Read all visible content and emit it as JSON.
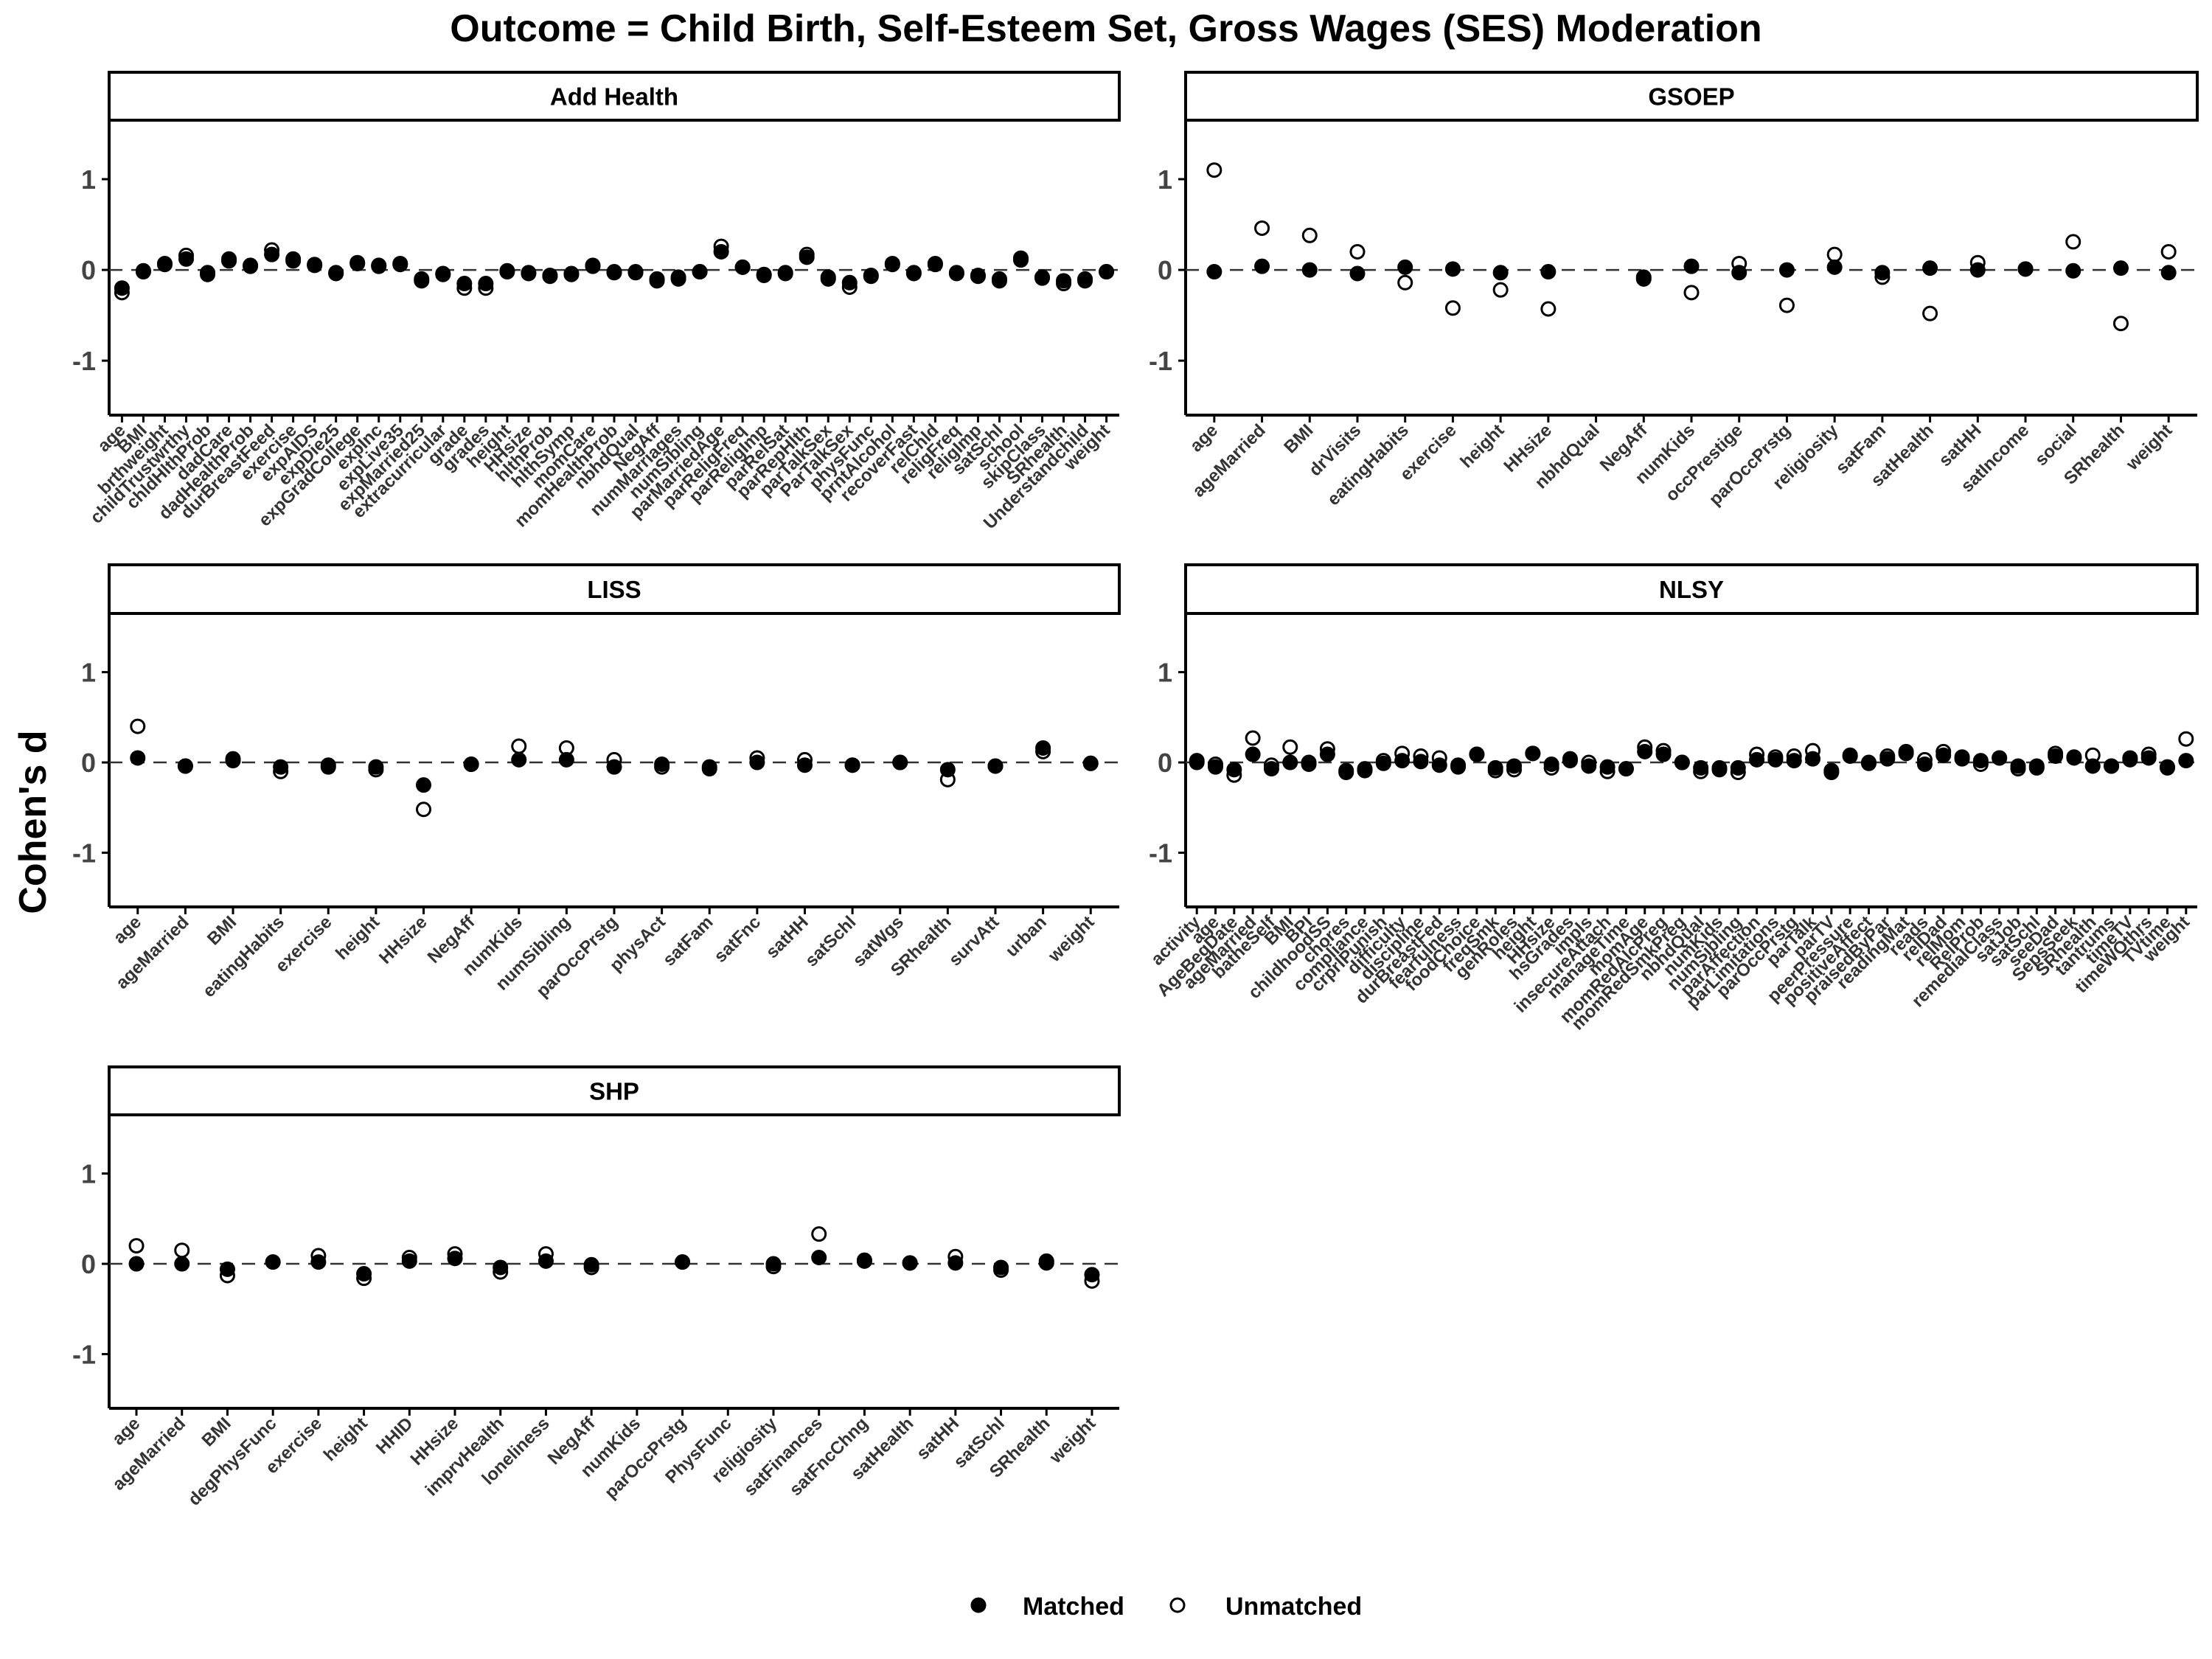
{
  "title": "Outcome = Child Birth, Self-Esteem Set, Gross Wages (SES) Moderation",
  "ylabel": "Cohen's d",
  "legend": {
    "position": "bottom",
    "items": [
      {
        "label": "Matched",
        "marker": "filled-circle"
      },
      {
        "label": "Unmatched",
        "marker": "open-circle"
      }
    ]
  },
  "colors": {
    "matched": "#000000",
    "unmatched": "#ffffff",
    "reference_line": "#333333"
  },
  "chart_data": [
    {
      "type": "scatter",
      "panel": "Add Health",
      "ylim": [
        -1.6,
        1.65
      ],
      "yticks": [
        -1,
        0,
        1
      ],
      "reference_line": 0,
      "categories": [
        "age",
        "BMI",
        "brthweight",
        "childTrustwrthy",
        "chldHlthProb",
        "dadCare",
        "dadHealthProb",
        "durBreastFeed",
        "exercise",
        "expAIDS",
        "expDie25",
        "expGradCollege",
        "expInc",
        "expLive35",
        "expMarried25",
        "extracurricular",
        "grade",
        "grades",
        "height",
        "HHsize",
        "hlthProb",
        "hlthSymp",
        "momCare",
        "momHealthProb",
        "nbhdQual",
        "NegAff",
        "numMarriages",
        "numSibling",
        "parMarriedAge",
        "parReligFreq",
        "parReligImp",
        "parRelSat",
        "parRepHlth",
        "parTalkSex",
        "ParTalkSex",
        "physFunc",
        "prntAlcohol",
        "recoverFast",
        "relChld",
        "religFreq",
        "religImp",
        "satSchl",
        "school",
        "skipClass",
        "SRhealth",
        "Understandchild",
        "weight"
      ],
      "series": [
        {
          "name": "Matched",
          "values": [
            -0.2,
            -0.02,
            0.06,
            0.12,
            -0.05,
            0.1,
            0.04,
            0.17,
            0.1,
            0.05,
            -0.04,
            0.07,
            0.04,
            0.06,
            -0.1,
            -0.04,
            -0.15,
            -0.15,
            -0.02,
            -0.04,
            -0.06,
            -0.04,
            0.04,
            -0.03,
            -0.03,
            -0.1,
            -0.08,
            -0.02,
            0.2,
            0.03,
            -0.05,
            -0.03,
            0.14,
            -0.08,
            -0.14,
            -0.06,
            0.06,
            -0.03,
            0.06,
            -0.03,
            -0.06,
            -0.1,
            0.11,
            -0.08,
            -0.12,
            -0.1,
            -0.02
          ]
        },
        {
          "name": "Unmatched",
          "values": [
            -0.25,
            -0.01,
            0.07,
            0.16,
            -0.03,
            0.12,
            0.05,
            0.22,
            0.12,
            0.06,
            -0.03,
            0.08,
            0.05,
            0.07,
            -0.12,
            -0.05,
            -0.2,
            -0.2,
            -0.01,
            -0.03,
            -0.07,
            -0.05,
            0.05,
            -0.02,
            -0.02,
            -0.12,
            -0.1,
            -0.02,
            0.26,
            0.03,
            -0.06,
            -0.04,
            0.17,
            -0.1,
            -0.19,
            -0.07,
            0.07,
            -0.04,
            0.07,
            -0.04,
            -0.07,
            -0.12,
            0.13,
            -0.09,
            -0.15,
            -0.12,
            -0.02
          ]
        }
      ]
    },
    {
      "type": "scatter",
      "panel": "GSOEP",
      "ylim": [
        -1.6,
        1.65
      ],
      "yticks": [
        -1,
        0,
        1
      ],
      "reference_line": 0,
      "categories": [
        "age",
        "ageMarried",
        "BMI",
        "drVisits",
        "eatingHabits",
        "exercise",
        "height",
        "HHsize",
        "nbhdQual",
        "NegAff",
        "numKids",
        "occPrestige",
        "parOccPrstg",
        "religiosity",
        "satFam",
        "satHealth",
        "satHH",
        "satIncome",
        "social",
        "SRhealth",
        "weight"
      ],
      "series": [
        {
          "name": "Matched",
          "values": [
            -0.02,
            0.04,
            0.0,
            -0.04,
            0.03,
            0.01,
            -0.03,
            -0.02,
            null,
            -0.08,
            0.04,
            -0.03,
            0.0,
            0.03,
            -0.03,
            0.02,
            0.0,
            0.01,
            -0.01,
            0.02,
            -0.03
          ]
        },
        {
          "name": "Unmatched",
          "values": [
            1.1,
            0.46,
            0.38,
            0.2,
            -0.14,
            -0.42,
            -0.22,
            -0.43,
            null,
            -0.1,
            -0.25,
            0.07,
            -0.39,
            0.17,
            -0.08,
            -0.48,
            0.08,
            0.01,
            0.31,
            -0.59,
            0.2
          ]
        }
      ]
    },
    {
      "type": "scatter",
      "panel": "LISS",
      "ylim": [
        -1.6,
        1.65
      ],
      "yticks": [
        -1,
        0,
        1
      ],
      "reference_line": 0,
      "categories": [
        "age",
        "ageMarried",
        "BMI",
        "eatingHabits",
        "exercise",
        "height",
        "HHsize",
        "NegAff",
        "numKids",
        "numSibling",
        "parOccPrstg",
        "physAct",
        "satFam",
        "satFnc",
        "satHH",
        "satSchl",
        "satWgs",
        "SRhealth",
        "survAtt",
        "urban",
        "weight"
      ],
      "series": [
        {
          "name": "Matched",
          "values": [
            0.05,
            -0.04,
            0.02,
            -0.05,
            -0.03,
            -0.05,
            -0.25,
            -0.02,
            0.03,
            0.03,
            -0.05,
            -0.02,
            -0.05,
            0.0,
            -0.03,
            -0.03,
            0.0,
            -0.08,
            -0.04,
            0.16,
            -0.01
          ]
        },
        {
          "name": "Unmatched",
          "values": [
            0.4,
            -0.04,
            0.04,
            -0.1,
            -0.05,
            -0.08,
            -0.52,
            -0.02,
            0.18,
            0.16,
            0.03,
            -0.05,
            -0.07,
            0.05,
            0.03,
            -0.03,
            0.0,
            -0.19,
            -0.04,
            0.12,
            -0.01
          ]
        }
      ]
    },
    {
      "type": "scatter",
      "panel": "NLSY",
      "ylim": [
        -1.6,
        1.65
      ],
      "yticks": [
        -1,
        0,
        1
      ],
      "reference_line": 0,
      "categories": [
        "activity",
        "age",
        "AgeBegDate",
        "ageMarried",
        "batheSelf",
        "BMI",
        "BPI",
        "childhoodSS",
        "chores",
        "compliance",
        "crprlPunish",
        "difficulty",
        "discipline",
        "durBreastFed",
        "fearfulness",
        "foodChoice",
        "freqSmk",
        "genRoles",
        "height",
        "HHsize",
        "hsGrades",
        "impls",
        "insecureAttach",
        "manageTime",
        "momAge",
        "momRedAlcPreg",
        "momRedSmkPreg",
        "nbhdQual",
        "numKids",
        "numSibling",
        "parAffection",
        "parLimitations",
        "parOccPrstg",
        "parTalk",
        "parTV",
        "peerPressure",
        "positiveAffect",
        "praisedByPar",
        "readingMat",
        "reads",
        "relDad",
        "relMom",
        "RelProb",
        "remedialClass",
        "satJob",
        "satSchl",
        "seeDad",
        "SepsSeek",
        "SRhealth",
        "tantrums",
        "timeTV",
        "timeWOthrs",
        "TVtime",
        "weight"
      ],
      "series": [
        {
          "name": "Matched",
          "values": [
            0.0,
            -0.05,
            -0.08,
            0.09,
            -0.07,
            0.0,
            -0.02,
            0.09,
            -0.09,
            -0.07,
            -0.01,
            0.02,
            0.01,
            -0.03,
            -0.05,
            0.09,
            -0.06,
            -0.04,
            0.1,
            -0.02,
            0.02,
            -0.04,
            -0.05,
            -0.07,
            0.12,
            0.09,
            0.0,
            -0.06,
            -0.08,
            -0.06,
            0.03,
            0.03,
            0.02,
            0.04,
            -0.09,
            0.07,
            -0.01,
            0.04,
            0.1,
            -0.02,
            0.08,
            0.06,
            0.02,
            0.05,
            -0.04,
            -0.06,
            0.07,
            0.06,
            -0.04,
            -0.04,
            0.05,
            0.05,
            -0.06,
            0.02
          ]
        },
        {
          "name": "Unmatched",
          "values": [
            0.02,
            -0.02,
            -0.14,
            0.27,
            -0.03,
            0.17,
            0.0,
            0.15,
            -0.11,
            -0.09,
            0.02,
            0.1,
            0.07,
            0.05,
            -0.03,
            0.09,
            -0.09,
            -0.08,
            0.1,
            -0.06,
            0.04,
            0.0,
            -0.1,
            -0.07,
            0.17,
            0.13,
            0.0,
            -0.1,
            -0.06,
            -0.11,
            0.09,
            0.06,
            0.07,
            0.13,
            -0.11,
            0.08,
            0.0,
            0.07,
            0.12,
            0.03,
            0.12,
            0.04,
            -0.02,
            0.05,
            -0.07,
            -0.04,
            0.1,
            0.05,
            0.08,
            -0.04,
            0.03,
            0.09,
            -0.05,
            0.26
          ]
        }
      ]
    },
    {
      "type": "scatter",
      "panel": "SHP",
      "ylim": [
        -1.6,
        1.65
      ],
      "yticks": [
        -1,
        0,
        1
      ],
      "reference_line": 0,
      "categories": [
        "age",
        "ageMarried",
        "BMI",
        "degPhysFunc",
        "exercise",
        "height",
        "HHID",
        "HHsize",
        "imprvHealth",
        "loneliness",
        "NegAff",
        "numKids",
        "parOccPrstg",
        "PhysFunc",
        "religiosity",
        "satFinances",
        "satFncChng",
        "satHealth",
        "satHH",
        "satSchl",
        "SRhealth",
        "weight"
      ],
      "series": [
        {
          "name": "Matched",
          "values": [
            0.0,
            0.0,
            -0.06,
            0.02,
            0.02,
            -0.11,
            0.03,
            0.06,
            -0.04,
            0.03,
            -0.01,
            null,
            0.02,
            null,
            0.0,
            0.07,
            0.03,
            0.01,
            0.01,
            -0.04,
            0.03,
            -0.12
          ]
        },
        {
          "name": "Unmatched",
          "values": [
            0.2,
            0.15,
            -0.13,
            0.02,
            0.09,
            -0.16,
            0.07,
            0.11,
            -0.09,
            0.11,
            -0.04,
            null,
            0.02,
            null,
            -0.03,
            0.33,
            0.04,
            0.01,
            0.08,
            -0.07,
            0.01,
            -0.19
          ]
        }
      ]
    }
  ]
}
